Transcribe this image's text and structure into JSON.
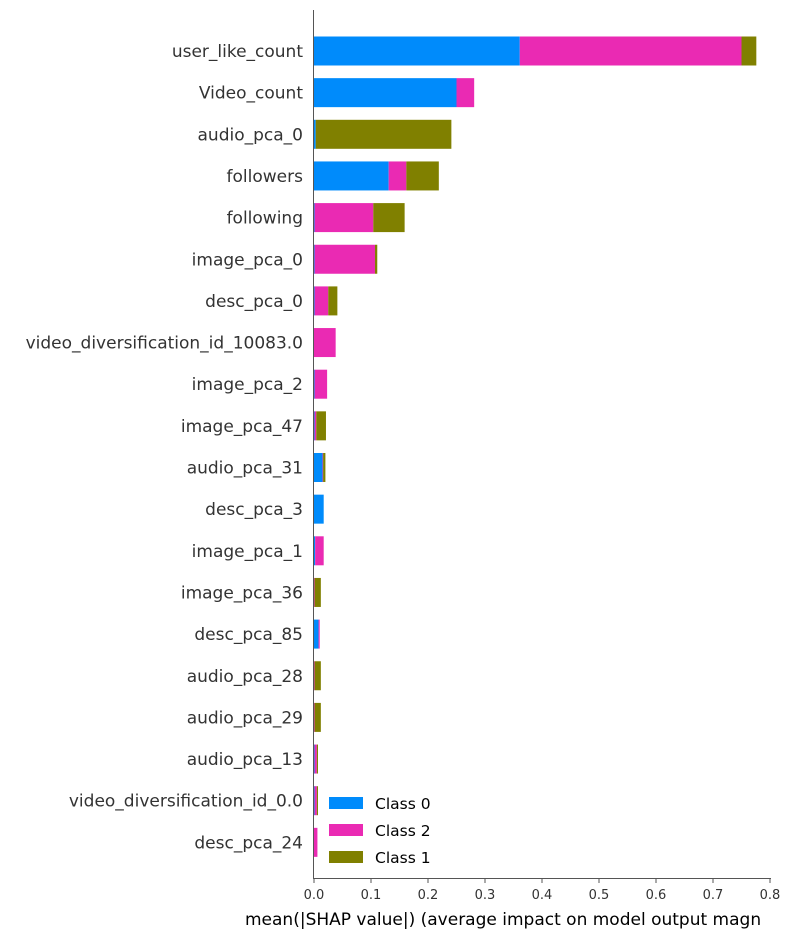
{
  "chart_data": {
    "type": "bar",
    "orientation": "horizontal",
    "stacked": true,
    "xlabel": "mean(|SHAP value|) (average impact on model output magn",
    "xlim": [
      0,
      0.8
    ],
    "xticks": [
      "0.0",
      "0.1",
      "0.2",
      "0.3",
      "0.4",
      "0.5",
      "0.6",
      "0.7",
      "0.8"
    ],
    "xtick_values": [
      0.0,
      0.1,
      0.2,
      0.3,
      0.4,
      0.5,
      0.6,
      0.7,
      0.8
    ],
    "grid": false,
    "legend_position": "lower-right",
    "categories": [
      "user_like_count",
      "Video_count",
      "audio_pca_0",
      "followers",
      "following",
      "image_pca_0",
      "desc_pca_0",
      "video_diversification_id_10083.0",
      "image_pca_2",
      "image_pca_47",
      "audio_pca_31",
      "desc_pca_3",
      "image_pca_1",
      "image_pca_36",
      "desc_pca_85",
      "audio_pca_28",
      "audio_pca_29",
      "audio_pca_13",
      "video_diversification_id_0.0",
      "desc_pca_24"
    ],
    "series": [
      {
        "name": "Class 0",
        "color": "#008bfb",
        "values": [
          0.361,
          0.25,
          0.003,
          0.131,
          0.001,
          0.001,
          0.001,
          0.0,
          0.001,
          0.001,
          0.015,
          0.017,
          0.002,
          0.0,
          0.008,
          0.0,
          0.0,
          0.001,
          0.001,
          0.0
        ]
      },
      {
        "name": "Class 2",
        "color": "#ea2ab3",
        "values": [
          0.389,
          0.031,
          0.0,
          0.031,
          0.103,
          0.106,
          0.024,
          0.038,
          0.022,
          0.003,
          0.001,
          0.0,
          0.015,
          0.001,
          0.002,
          0.001,
          0.001,
          0.004,
          0.004,
          0.006
        ]
      },
      {
        "name": "Class 1",
        "color": "#808000",
        "values": [
          0.026,
          0.0,
          0.238,
          0.057,
          0.055,
          0.004,
          0.016,
          0.0,
          0.0,
          0.017,
          0.004,
          0.0,
          0.0,
          0.011,
          0.0,
          0.011,
          0.011,
          0.002,
          0.002,
          0.0
        ]
      }
    ]
  }
}
